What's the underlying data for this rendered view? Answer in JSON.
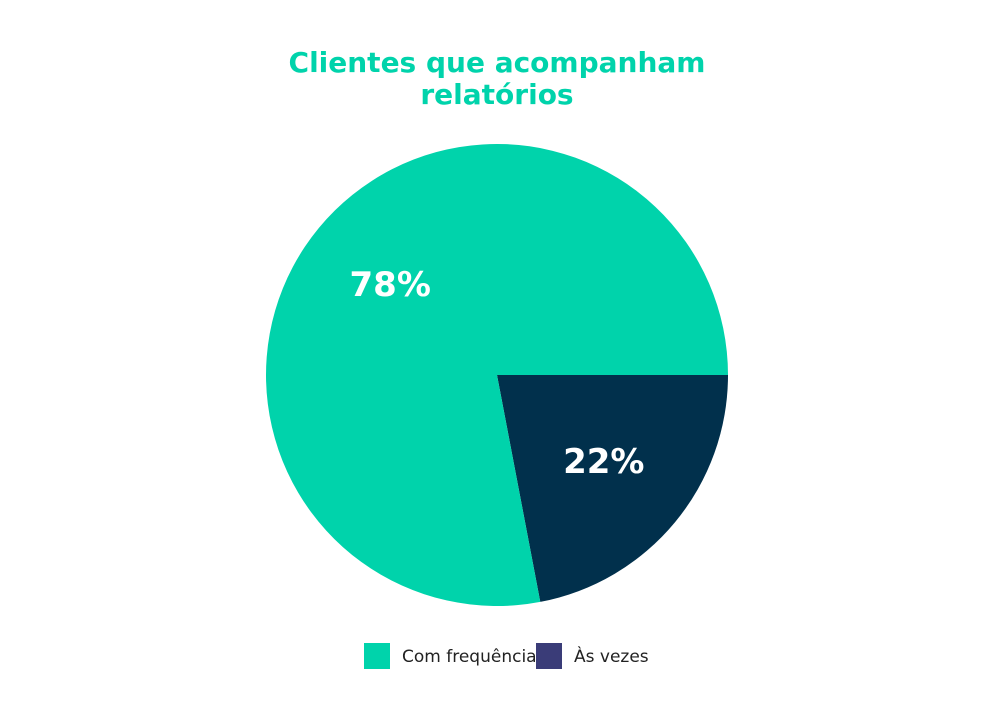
{
  "chart_data": {
    "type": "pie",
    "title": [
      "Clientes que acompanham",
      "relatórios"
    ],
    "categories": [
      "Com frequência",
      "Às vezes"
    ],
    "values": [
      78,
      22
    ],
    "value_labels": [
      "78%",
      "22%"
    ],
    "colors": [
      "#00d3ab",
      "#01304c"
    ],
    "legend_colors": [
      "#00d3ab",
      "#3a3c78"
    ]
  }
}
